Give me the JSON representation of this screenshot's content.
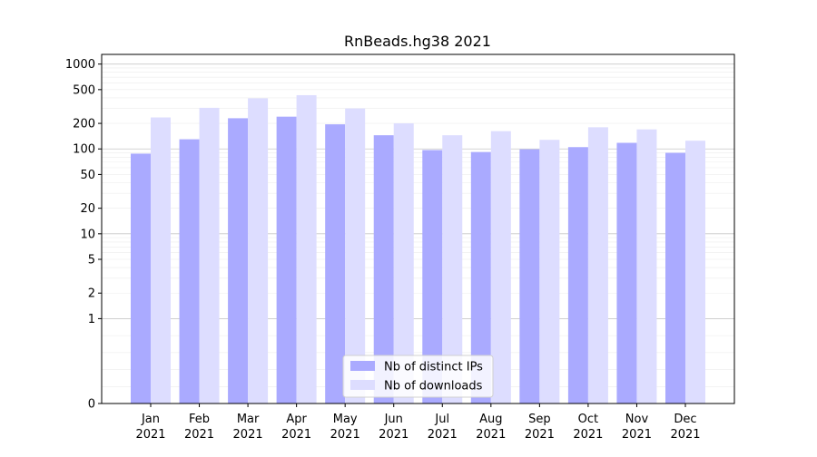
{
  "chart_data": {
    "type": "bar",
    "title": "RnBeads.hg38 2021",
    "xlabel": "",
    "ylabel": "",
    "y_scale": "symlog",
    "ylim": [
      0,
      1300
    ],
    "y_ticks": [
      0,
      1,
      2,
      5,
      10,
      20,
      50,
      100,
      200,
      500,
      1000
    ],
    "y_tick_labels": [
      "0",
      "1",
      "2",
      "5",
      "10",
      "20",
      "50",
      "100",
      "200",
      "500",
      "1000"
    ],
    "categories": [
      "Jan",
      "Feb",
      "Mar",
      "Apr",
      "May",
      "Jun",
      "Jul",
      "Aug",
      "Sep",
      "Oct",
      "Nov",
      "Dec"
    ],
    "category_years": [
      "2021",
      "2021",
      "2021",
      "2021",
      "2021",
      "2021",
      "2021",
      "2021",
      "2021",
      "2021",
      "2021",
      "2021"
    ],
    "series": [
      {
        "name": "Nb of distinct IPs",
        "color": "#aaaaff",
        "values": [
          88,
          130,
          230,
          240,
          195,
          145,
          97,
          92,
          99,
          105,
          118,
          90
        ]
      },
      {
        "name": "Nb of downloads",
        "color": "#ddddff",
        "values": [
          235,
          305,
          395,
          430,
          300,
          200,
          145,
          162,
          128,
          180,
          170,
          125
        ]
      }
    ],
    "legend_position": "bottom-center",
    "grid": true
  }
}
